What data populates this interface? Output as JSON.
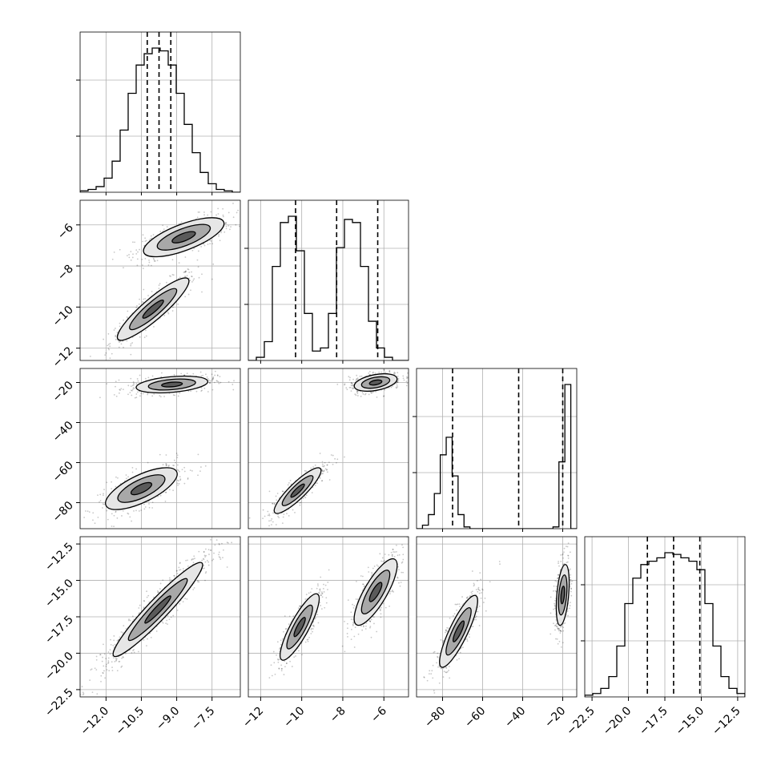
{
  "chart_data": {
    "type": "corner",
    "title": "",
    "grid": true,
    "parameters": [
      {
        "name": "",
        "range": [
          -13.1,
          -6.3
        ],
        "ticks": [
          -12.0,
          -10.5,
          -9.0,
          -7.5
        ],
        "tick_labels": [
          "−12.0",
          "−10.5",
          "−9.0",
          "−7.5"
        ],
        "quantiles": [
          -10.25,
          -9.75,
          -9.25
        ]
      },
      {
        "name": "",
        "range": [
          -12.6,
          -4.8
        ],
        "ticks": [
          -12,
          -10,
          -8,
          -6
        ],
        "tick_labels": [
          "−12",
          "−10",
          "−8",
          "−6"
        ],
        "quantiles": [
          -10.3,
          -8.3,
          -6.3
        ]
      },
      {
        "name": "",
        "range": [
          -93,
          -13
        ],
        "ticks": [
          -80,
          -60,
          -40,
          -20
        ],
        "tick_labels": [
          "−80",
          "−60",
          "−40",
          "−20"
        ],
        "quantiles": [
          -75,
          -42,
          -20
        ]
      },
      {
        "name": "",
        "range": [
          -23.0,
          -12.0
        ],
        "ticks": [
          -22.5,
          -20.0,
          -17.5,
          -15.0,
          -12.5
        ],
        "tick_labels": [
          "−22.5",
          "−20.0",
          "−17.5",
          "−15.0",
          "−12.5"
        ],
        "quantiles": [
          -18.7,
          -16.9,
          -15.1
        ]
      }
    ],
    "histograms": [
      {
        "parameter": 0,
        "counts": [
          1,
          2,
          4,
          10,
          22,
          44,
          70,
          90,
          98,
          102,
          100,
          90,
          70,
          48,
          28,
          14,
          6,
          2,
          1,
          0
        ]
      },
      {
        "parameter": 1,
        "counts": [
          0,
          2,
          12,
          60,
          88,
          92,
          70,
          30,
          6,
          8,
          30,
          72,
          90,
          88,
          60,
          25,
          8,
          2,
          0,
          0
        ]
      },
      {
        "parameter": 2,
        "counts": [
          0,
          2,
          8,
          20,
          42,
          52,
          30,
          8,
          1,
          0,
          0,
          0,
          0,
          0,
          0,
          0,
          0,
          0,
          0,
          0,
          0,
          0,
          0,
          1,
          38,
          82,
          0
        ]
      },
      {
        "parameter": 3,
        "counts": [
          1,
          2,
          5,
          12,
          30,
          55,
          70,
          78,
          80,
          82,
          85,
          84,
          82,
          80,
          75,
          55,
          30,
          12,
          5,
          2
        ]
      }
    ],
    "modes": [
      {
        "row": 1,
        "col": 0,
        "components": [
          {
            "mean": [
              -10.0,
              -10.1
            ],
            "sd": [
              0.8,
              0.8
            ],
            "rho": 0.9,
            "weight": 0.5
          },
          {
            "mean": [
              -8.7,
              -6.6
            ],
            "sd": [
              0.9,
              0.5
            ],
            "rho": 0.7,
            "weight": 0.5
          }
        ]
      },
      {
        "row": 2,
        "col": 0,
        "components": [
          {
            "mean": [
              -10.5,
              -73
            ],
            "sd": [
              0.8,
              5.5
            ],
            "rho": 0.7,
            "weight": 0.5
          },
          {
            "mean": [
              -9.2,
              -21
            ],
            "sd": [
              0.8,
              2.2
            ],
            "rho": 0.35,
            "weight": 0.5
          }
        ]
      },
      {
        "row": 2,
        "col": 1,
        "components": [
          {
            "mean": [
              -10.2,
              -74
            ],
            "sd": [
              0.6,
              6.0
            ],
            "rho": 0.88,
            "weight": 0.5
          },
          {
            "mean": [
              -6.4,
              -20
            ],
            "sd": [
              0.55,
              2.3
            ],
            "rho": 0.4,
            "weight": 0.5
          }
        ]
      },
      {
        "row": 3,
        "col": 0,
        "components": [
          {
            "mean": [
              -9.8,
              -17.0
            ],
            "sd": [
              1.0,
              1.7
            ],
            "rho": 0.95,
            "weight": 1.0
          }
        ]
      },
      {
        "row": 3,
        "col": 1,
        "components": [
          {
            "mean": [
              -10.1,
              -18.2
            ],
            "sd": [
              0.5,
              1.2
            ],
            "rho": 0.85,
            "weight": 0.5
          },
          {
            "mean": [
              -6.4,
              -15.8
            ],
            "sd": [
              0.55,
              1.2
            ],
            "rho": 0.8,
            "weight": 0.5
          }
        ]
      },
      {
        "row": 3,
        "col": 2,
        "components": [
          {
            "mean": [
              -72,
              -18.5
            ],
            "sd": [
              5.0,
              1.3
            ],
            "rho": 0.85,
            "weight": 0.5
          },
          {
            "mean": [
              -20,
              -16.0
            ],
            "sd": [
              1.7,
              1.1
            ],
            "rho": 0.4,
            "weight": 0.5
          }
        ]
      }
    ]
  }
}
